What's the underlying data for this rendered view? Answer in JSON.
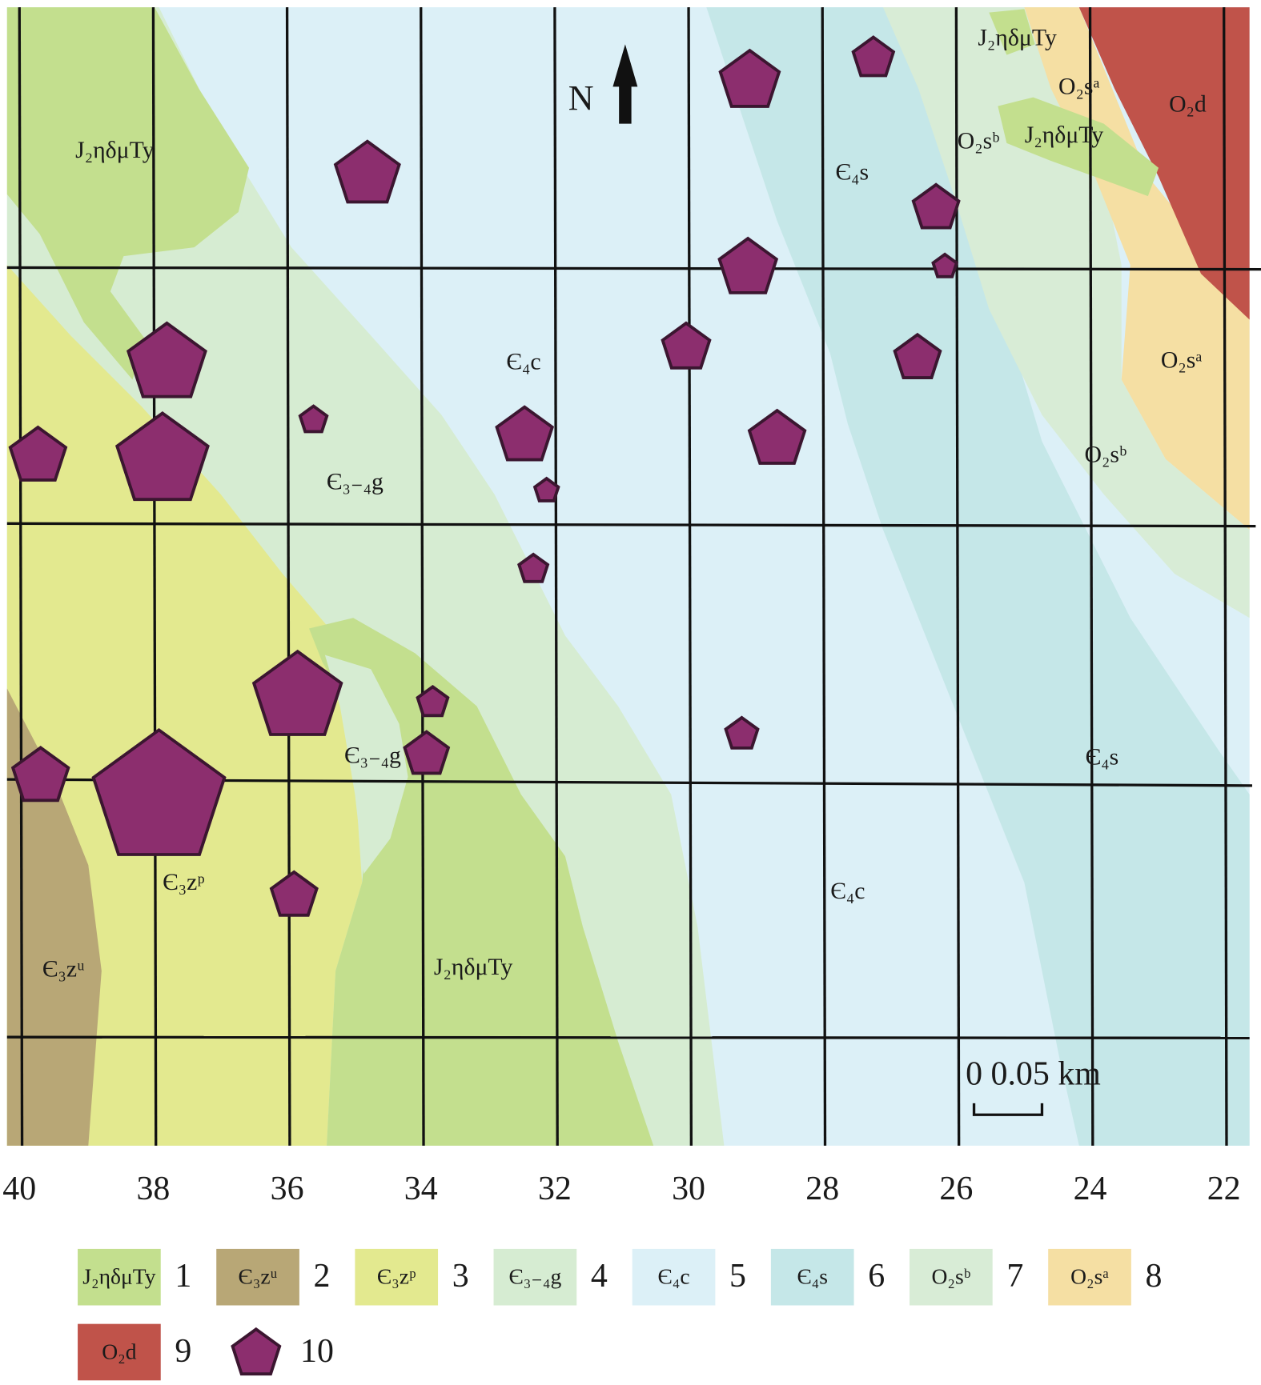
{
  "map": {
    "north": "N",
    "scale": {
      "start": "0",
      "end": "0.05 km"
    },
    "labels": [
      "J₂ηδμTy",
      "J₂ηδμTy",
      "O₂sᵃ",
      "O₂d",
      "O₂sᵇ",
      "J₂ηδμTy",
      "Є₄s",
      "Є₄c",
      "O₂sᵃ",
      "O₂sᵇ",
      "Є₃₋₄g",
      "Є₃₋₄g",
      "Є₄s",
      "Є₃zᵖ",
      "Є₄c",
      "Є₃zᵘ",
      "J₂ηδμTy"
    ],
    "xticks": [
      40,
      38,
      36,
      34,
      32,
      30,
      28,
      26,
      24,
      22
    ]
  },
  "legend": [
    {
      "swatch": "J₂ηδμTy",
      "number": 1
    },
    {
      "swatch": "Є₃zᵘ",
      "number": 2
    },
    {
      "swatch": "Є₃zᵖ",
      "number": 3
    },
    {
      "swatch": "Є₃₋₄g",
      "number": 4
    },
    {
      "swatch": "Є₄c",
      "number": 5
    },
    {
      "swatch": "Є₄s",
      "number": 6
    },
    {
      "swatch": "O₂sᵇ",
      "number": 7
    },
    {
      "swatch": "O₂sᵃ",
      "number": 8
    },
    {
      "swatch": "O₂d",
      "number": 9
    },
    {
      "number": 10
    }
  ]
}
